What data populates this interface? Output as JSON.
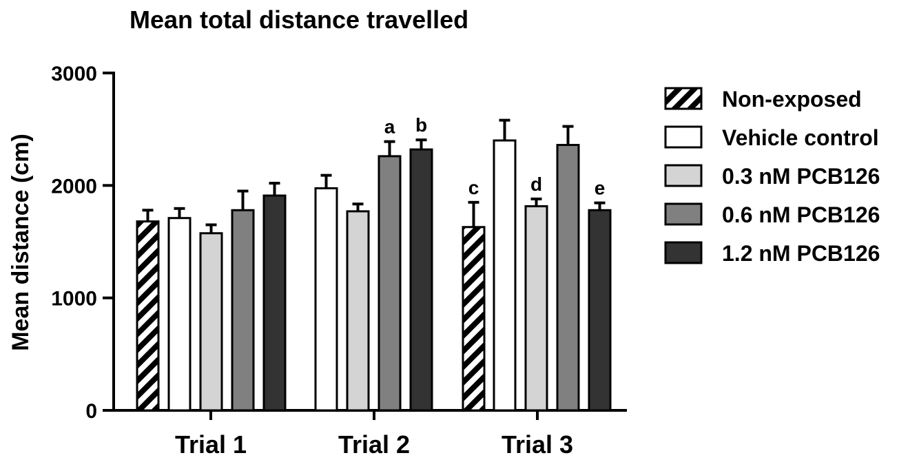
{
  "chart_data": {
    "type": "bar",
    "title": "Mean total distance travelled",
    "xlabel": "",
    "ylabel": "Mean distance (cm)",
    "ylim": [
      0,
      3000
    ],
    "yticks": [
      "0",
      "1000",
      "2000",
      "3000"
    ],
    "categories": [
      "Trial 1",
      "Trial 2",
      "Trial 3"
    ],
    "legend_position": "right",
    "series": [
      {
        "name": "Non-exposed",
        "fill": "hatch",
        "color": "#000000",
        "values": [
          1680,
          null,
          1630
        ],
        "errors": [
          100,
          null,
          220
        ],
        "labels": [
          "",
          "",
          "c"
        ]
      },
      {
        "name": "Vehicle control",
        "fill": "solid",
        "color": "#ffffff",
        "values": [
          1710,
          1975,
          2400
        ],
        "errors": [
          85,
          115,
          180
        ],
        "labels": [
          "",
          "",
          ""
        ]
      },
      {
        "name": "0.3 nM PCB126",
        "fill": "solid",
        "color": "#d4d4d4",
        "values": [
          1575,
          1770,
          1815
        ],
        "errors": [
          75,
          65,
          65
        ],
        "labels": [
          "",
          "",
          "d"
        ]
      },
      {
        "name": "0.6 nM PCB126",
        "fill": "solid",
        "color": "#808080",
        "values": [
          1780,
          2260,
          2360
        ],
        "errors": [
          170,
          130,
          165
        ],
        "labels": [
          "",
          "a",
          ""
        ]
      },
      {
        "name": "1.2 nM PCB126",
        "fill": "solid",
        "color": "#333333",
        "values": [
          1910,
          2320,
          1780
        ],
        "errors": [
          110,
          85,
          65
        ],
        "labels": [
          "",
          "b",
          "e"
        ]
      }
    ]
  }
}
